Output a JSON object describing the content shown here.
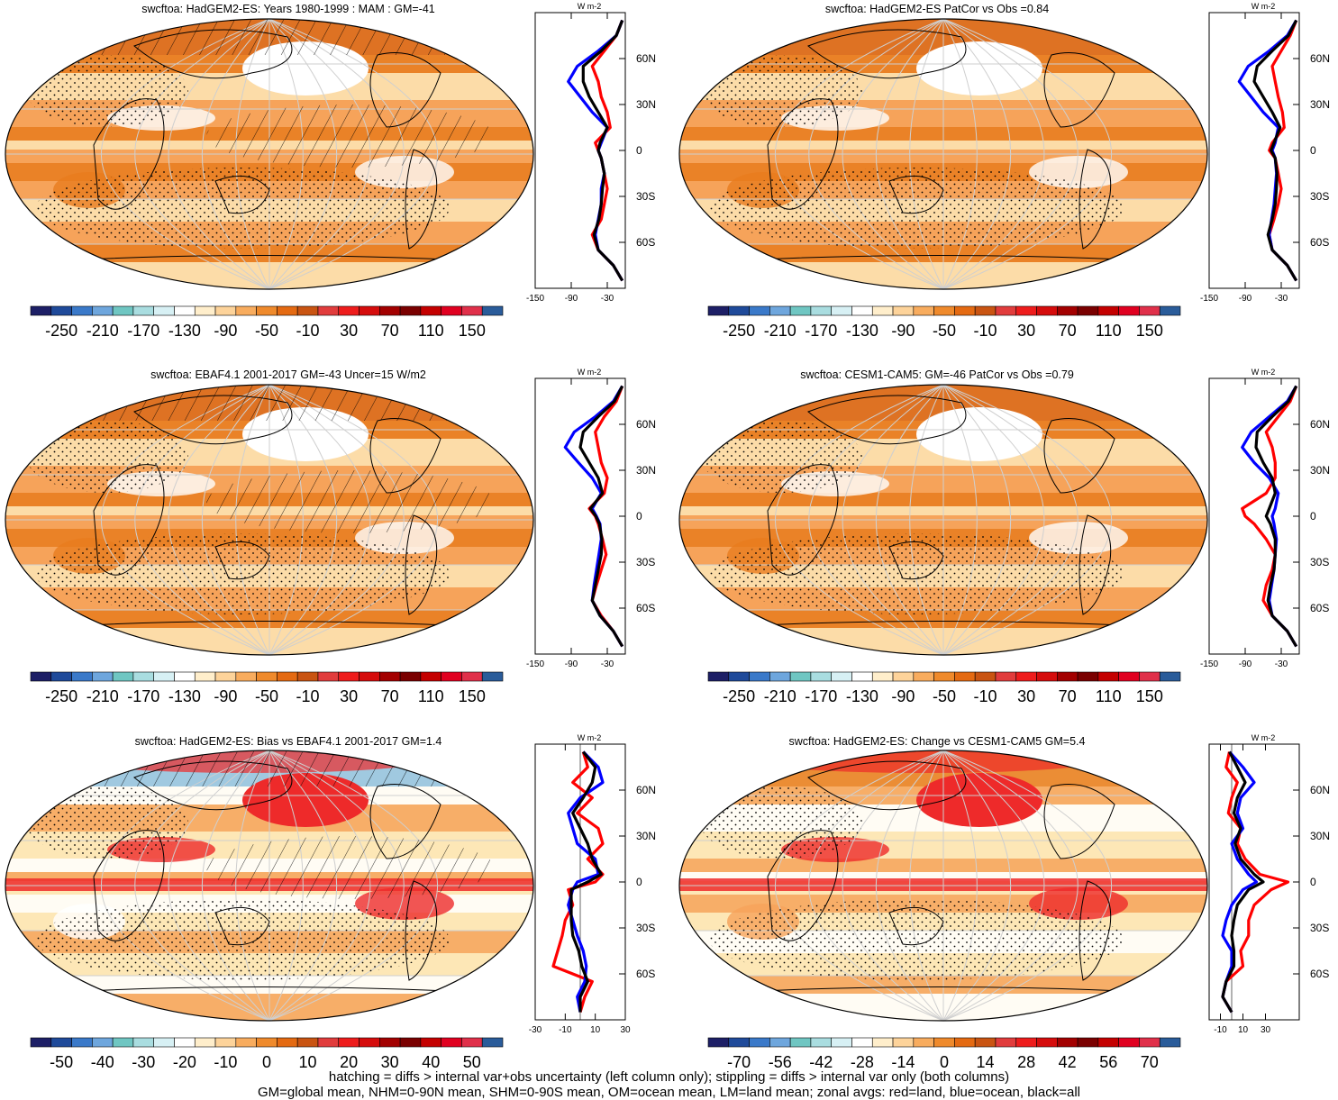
{
  "colors": {
    "land": "#ff0000",
    "ocean": "#0000ff",
    "all": "#000000",
    "colorbar": [
      "#1d1f66",
      "#1f4a9a",
      "#3a79c9",
      "#6ea6dd",
      "#6fc6c2",
      "#a9dde0",
      "#d7f0f4",
      "#ffffff",
      "#ffeecb",
      "#fdd39a",
      "#f8ac5e",
      "#ef8a2c",
      "#e46a12",
      "#c95412",
      "#e13c3c",
      "#ee1c1c",
      "#d50c0c",
      "#a30000",
      "#7a0000",
      "#c40000",
      "#e00020",
      "#e0304a",
      "#2a5c9a"
    ]
  },
  "footer": {
    "line1": "hatching = diffs > internal var+obs uncertainty (left column only); stippling = diffs > internal var only (both columns)",
    "line2": "GM=global mean, NHM=0-90N mean, SHM=0-90S mean, OM=ocean mean, LM=land mean; zonal avgs: red=land, blue=ocean, black=all"
  },
  "chart_data": [
    {
      "type": "heatmap",
      "title": "swcftoa: HadGEM2-ES: Years 1980-1999 : MAM : GM=-41",
      "colorbar_labels": [
        "-250",
        "-210",
        "-170",
        "-130",
        "-90",
        "-50",
        "-10",
        "30",
        "70",
        "110",
        "150"
      ],
      "zonal_profile": {
        "units": "W m-2",
        "xticks": [
          "-150",
          "-90",
          "-30"
        ],
        "xlim": [
          -150,
          0
        ],
        "yticks": [
          "60N",
          "30N",
          "0",
          "30S",
          "60S"
        ],
        "ylim": [
          -90,
          90
        ],
        "lat": [
          85,
          75,
          65,
          55,
          45,
          35,
          25,
          15,
          5,
          0,
          -5,
          -15,
          -25,
          -35,
          -45,
          -55,
          -65,
          -75,
          -85
        ],
        "series": [
          {
            "key": "land",
            "values": [
              -5,
              -15,
              -35,
              -55,
              -45,
              -40,
              -30,
              -25,
              -50,
              -45,
              -40,
              -35,
              -30,
              -35,
              -40,
              -55,
              -45,
              -20,
              -5
            ]
          },
          {
            "key": "ocean",
            "values": [
              -5,
              -15,
              -45,
              -80,
              -95,
              -75,
              -55,
              -30,
              -40,
              -45,
              -40,
              -35,
              -40,
              -40,
              -45,
              -50,
              -45,
              -20,
              -5
            ]
          },
          {
            "key": "all",
            "values": [
              -5,
              -15,
              -40,
              -70,
              -70,
              -60,
              -45,
              -30,
              -42,
              -45,
              -40,
              -35,
              -38,
              -40,
              -44,
              -52,
              -45,
              -20,
              -5
            ]
          }
        ]
      }
    },
    {
      "type": "heatmap",
      "title": "swcftoa: HadGEM2-ES PatCor vs Obs =0.84",
      "colorbar_labels": [
        "-250",
        "-210",
        "-170",
        "-130",
        "-90",
        "-50",
        "-10",
        "30",
        "70",
        "110",
        "150"
      ],
      "zonal_profile": {
        "units": "W m-2",
        "xticks": [
          "-150",
          "-90",
          "-30"
        ],
        "xlim": [
          -150,
          0
        ],
        "yticks": [
          "60N",
          "30N",
          "0",
          "30S",
          "60S"
        ],
        "ylim": [
          -90,
          90
        ],
        "lat": [
          85,
          75,
          65,
          55,
          45,
          35,
          25,
          15,
          5,
          0,
          -5,
          -15,
          -25,
          -35,
          -45,
          -55,
          -65,
          -75,
          -85
        ],
        "series": [
          {
            "key": "land",
            "values": [
              -5,
              -15,
              -30,
              -45,
              -40,
              -35,
              -28,
              -25,
              -45,
              -50,
              -40,
              -35,
              -30,
              -35,
              -42,
              -50,
              -45,
              -20,
              -5
            ]
          },
          {
            "key": "ocean",
            "values": [
              -5,
              -20,
              -50,
              -85,
              -100,
              -80,
              -60,
              -35,
              -40,
              -45,
              -40,
              -38,
              -40,
              -42,
              -46,
              -50,
              -45,
              -20,
              -5
            ]
          },
          {
            "key": "all",
            "values": [
              -5,
              -18,
              -45,
              -70,
              -75,
              -60,
              -45,
              -32,
              -42,
              -47,
              -40,
              -37,
              -38,
              -40,
              -45,
              -52,
              -45,
              -20,
              -5
            ]
          }
        ]
      }
    },
    {
      "type": "heatmap",
      "title": "swcftoa: EBAF4.1 2001-2017 GM=-43 Uncer=15 W/m2",
      "colorbar_labels": [
        "-250",
        "-210",
        "-170",
        "-130",
        "-90",
        "-50",
        "-10",
        "30",
        "70",
        "110",
        "150"
      ],
      "zonal_profile": {
        "units": "W m-2",
        "xticks": [
          "-150",
          "-90",
          "-30"
        ],
        "xlim": [
          -150,
          0
        ],
        "yticks": [
          "60N",
          "30N",
          "0",
          "30S",
          "60S"
        ],
        "ylim": [
          -90,
          90
        ],
        "lat": [
          85,
          75,
          65,
          55,
          45,
          35,
          25,
          15,
          5,
          0,
          -5,
          -15,
          -25,
          -35,
          -45,
          -55,
          -65,
          -75,
          -85
        ],
        "series": [
          {
            "key": "land",
            "values": [
              -5,
              -15,
              -35,
              -50,
              -45,
              -40,
              -30,
              -35,
              -60,
              -50,
              -45,
              -38,
              -32,
              -40,
              -48,
              -55,
              -40,
              -20,
              -5
            ]
          },
          {
            "key": "ocean",
            "values": [
              -5,
              -20,
              -50,
              -85,
              -100,
              -78,
              -55,
              -40,
              -55,
              -48,
              -42,
              -40,
              -44,
              -48,
              -52,
              -55,
              -42,
              -20,
              -5
            ]
          },
          {
            "key": "all",
            "values": [
              -5,
              -18,
              -45,
              -70,
              -75,
              -60,
              -45,
              -38,
              -58,
              -49,
              -43,
              -39,
              -40,
              -45,
              -50,
              -55,
              -42,
              -20,
              -5
            ]
          }
        ]
      }
    },
    {
      "type": "heatmap",
      "title": "swcftoa: CESM1-CAM5: GM=-46 PatCor vs Obs =0.79",
      "colorbar_labels": [
        "-250",
        "-210",
        "-170",
        "-130",
        "-90",
        "-50",
        "-10",
        "30",
        "70",
        "110",
        "150"
      ],
      "zonal_profile": {
        "units": "W m-2",
        "xticks": [
          "-150",
          "-90",
          "-30"
        ],
        "xlim": [
          -150,
          0
        ],
        "yticks": [
          "60N",
          "30N",
          "0",
          "30S",
          "60S"
        ],
        "ylim": [
          -90,
          90
        ],
        "lat": [
          85,
          75,
          65,
          55,
          45,
          35,
          25,
          15,
          5,
          0,
          -5,
          -15,
          -25,
          -35,
          -45,
          -55,
          -65,
          -75,
          -85
        ],
        "series": [
          {
            "key": "land",
            "values": [
              -5,
              -15,
              -35,
              -55,
              -45,
              -40,
              -40,
              -55,
              -95,
              -90,
              -75,
              -55,
              -40,
              -45,
              -55,
              -60,
              -45,
              -20,
              -5
            ]
          },
          {
            "key": "ocean",
            "values": [
              -5,
              -20,
              -50,
              -80,
              -95,
              -75,
              -50,
              -35,
              -40,
              -45,
              -42,
              -38,
              -40,
              -42,
              -46,
              -50,
              -45,
              -20,
              -5
            ]
          },
          {
            "key": "all",
            "values": [
              -5,
              -18,
              -45,
              -70,
              -72,
              -60,
              -45,
              -40,
              -50,
              -55,
              -48,
              -40,
              -40,
              -42,
              -48,
              -52,
              -45,
              -20,
              -5
            ]
          }
        ]
      }
    },
    {
      "type": "heatmap",
      "title": "swcftoa: HadGEM2-ES: Bias vs EBAF4.1 2001-2017 GM=1.4",
      "colorbar_labels": [
        "-50",
        "-40",
        "-30",
        "-20",
        "-10",
        "0",
        "10",
        "20",
        "30",
        "40",
        "50"
      ],
      "zonal_profile": {
        "units": "W m-2",
        "xticks": [
          "-30",
          "-10",
          "10",
          "30"
        ],
        "xlim": [
          -30,
          30
        ],
        "yticks": [
          "60N",
          "30N",
          "0",
          "30S",
          "60S"
        ],
        "ylim": [
          -90,
          90
        ],
        "lat": [
          85,
          75,
          65,
          55,
          45,
          35,
          25,
          15,
          5,
          0,
          -5,
          -15,
          -25,
          -35,
          -45,
          -55,
          -65,
          -75,
          -85
        ],
        "series": [
          {
            "key": "land",
            "values": [
              2,
              5,
              -5,
              8,
              -2,
              12,
              15,
              5,
              15,
              10,
              -8,
              -5,
              -10,
              -12,
              -15,
              -18,
              8,
              3,
              0
            ]
          },
          {
            "key": "ocean",
            "values": [
              2,
              12,
              15,
              0,
              -8,
              -5,
              -2,
              10,
              12,
              -2,
              -5,
              -8,
              -5,
              -2,
              2,
              4,
              3,
              -2,
              0
            ]
          },
          {
            "key": "all",
            "values": [
              2,
              10,
              8,
              2,
              -5,
              0,
              5,
              8,
              14,
              5,
              -6,
              -6,
              -6,
              -5,
              -1,
              1,
              5,
              0,
              0
            ]
          }
        ]
      }
    },
    {
      "type": "heatmap",
      "title": "swcftoa: HadGEM2-ES: Change vs CESM1-CAM5 GM=5.4",
      "colorbar_labels": [
        "-70",
        "-56",
        "-42",
        "-28",
        "-14",
        "0",
        "14",
        "28",
        "42",
        "56",
        "70"
      ],
      "zonal_profile": {
        "units": "W m-2",
        "xticks": [
          "-10",
          "10",
          "30"
        ],
        "xlim": [
          -20,
          60
        ],
        "yticks": [
          "60N",
          "30N",
          "0",
          "30S",
          "60S"
        ],
        "ylim": [
          -90,
          90
        ],
        "lat": [
          85,
          75,
          65,
          55,
          45,
          35,
          25,
          15,
          5,
          0,
          -5,
          -15,
          -25,
          -35,
          -45,
          -55,
          -65,
          -75,
          -85
        ],
        "series": [
          {
            "key": "land",
            "values": [
              -2,
              -5,
              5,
              0,
              -3,
              8,
              5,
              12,
              25,
              50,
              35,
              20,
              15,
              15,
              8,
              10,
              -5,
              -8,
              0
            ]
          },
          {
            "key": "ocean",
            "values": [
              -2,
              10,
              20,
              8,
              5,
              10,
              0,
              5,
              15,
              22,
              10,
              0,
              -5,
              -8,
              0,
              0,
              -5,
              -8,
              0
            ]
          },
          {
            "key": "all",
            "values": [
              -2,
              5,
              12,
              5,
              2,
              8,
              3,
              8,
              20,
              28,
              15,
              5,
              2,
              0,
              2,
              2,
              -5,
              -8,
              0
            ]
          }
        ]
      }
    }
  ]
}
